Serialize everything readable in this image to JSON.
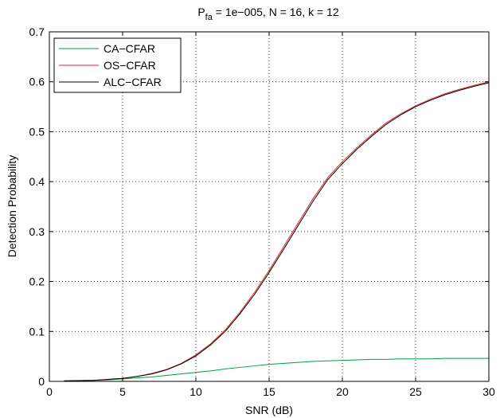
{
  "chart_data": {
    "type": "line",
    "title": {
      "main": "P",
      "sub": "fa",
      "rest": " = 1e−005, N = 16, k = 12"
    },
    "xlabel": "SNR (dB)",
    "ylabel": "Detection Probability",
    "xlim": [
      0,
      30
    ],
    "ylim": [
      0,
      0.7
    ],
    "xticks": [
      0,
      5,
      10,
      15,
      20,
      25,
      30
    ],
    "yticks": [
      0,
      0.1,
      0.2,
      0.3,
      0.4,
      0.5,
      0.6,
      0.7
    ],
    "xtick_labels": [
      "0",
      "5",
      "10",
      "15",
      "20",
      "25",
      "30"
    ],
    "ytick_labels": [
      "0",
      "0.1",
      "0.2",
      "0.3",
      "0.4",
      "0.5",
      "0.6",
      "0.7"
    ],
    "grid": true,
    "legend_position": "top-left",
    "x": [
      1,
      2,
      3,
      4,
      5,
      6,
      7,
      8,
      9,
      10,
      11,
      12,
      13,
      14,
      15,
      16,
      17,
      18,
      19,
      20,
      21,
      22,
      23,
      24,
      25,
      26,
      27,
      28,
      29,
      30
    ],
    "series": [
      {
        "name": "CA−CFAR",
        "color": "#009e3a",
        "values": [
          0.001,
          0.0015,
          0.002,
          0.003,
          0.005,
          0.007,
          0.009,
          0.012,
          0.015,
          0.018,
          0.021,
          0.025,
          0.028,
          0.031,
          0.034,
          0.036,
          0.038,
          0.04,
          0.041,
          0.042,
          0.043,
          0.044,
          0.044,
          0.045,
          0.045,
          0.045,
          0.046,
          0.046,
          0.046,
          0.046
        ]
      },
      {
        "name": "OS−CFAR",
        "color": "#e0262b",
        "values": [
          0.001,
          0.0015,
          0.002,
          0.004,
          0.006,
          0.01,
          0.016,
          0.024,
          0.036,
          0.053,
          0.075,
          0.103,
          0.138,
          0.178,
          0.222,
          0.27,
          0.318,
          0.366,
          0.408,
          0.44,
          0.468,
          0.494,
          0.518,
          0.536,
          0.552,
          0.565,
          0.576,
          0.585,
          0.593,
          0.6
        ]
      },
      {
        "name": "ALC−CFAR",
        "color": "#000000",
        "values": [
          0.001,
          0.0015,
          0.002,
          0.004,
          0.006,
          0.01,
          0.015,
          0.023,
          0.035,
          0.051,
          0.073,
          0.1,
          0.135,
          0.174,
          0.218,
          0.265,
          0.313,
          0.361,
          0.404,
          0.436,
          0.465,
          0.491,
          0.515,
          0.534,
          0.55,
          0.563,
          0.574,
          0.583,
          0.591,
          0.598
        ]
      }
    ]
  }
}
